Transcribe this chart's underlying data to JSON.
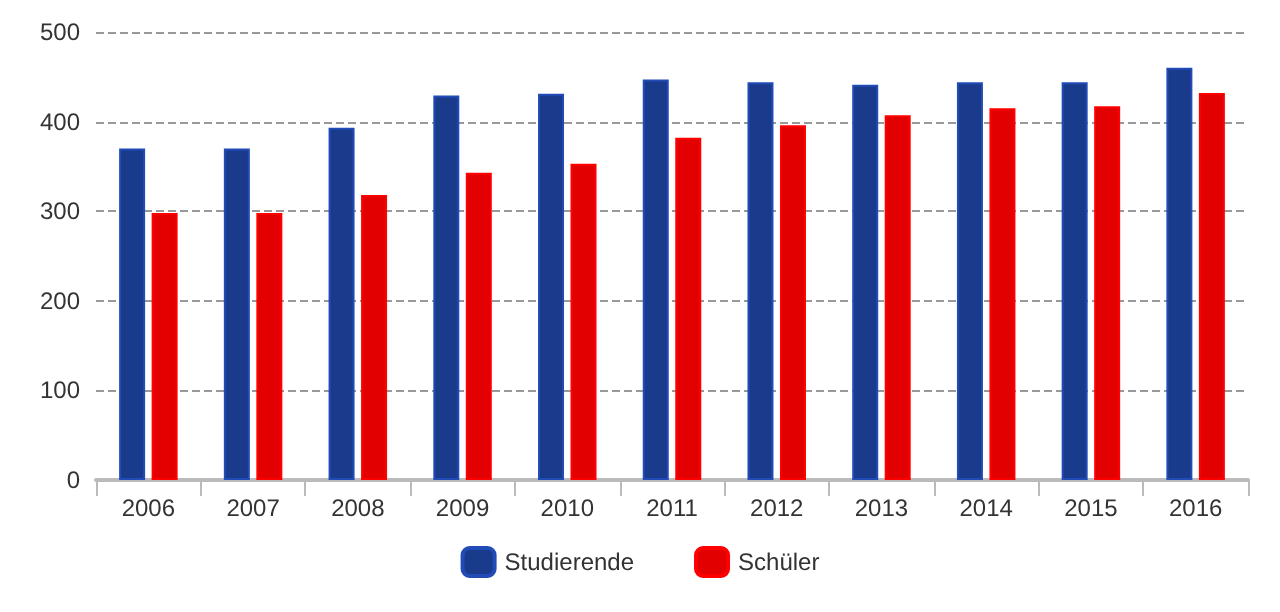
{
  "chart_data": {
    "type": "bar",
    "categories": [
      "2006",
      "2007",
      "2008",
      "2009",
      "2010",
      "2011",
      "2012",
      "2013",
      "2014",
      "2015",
      "2016"
    ],
    "series": [
      {
        "name": "Studierende",
        "color": "#1a3a8c",
        "values": [
          370,
          370,
          393,
          429,
          431,
          447,
          444,
          441,
          444,
          444,
          460
        ]
      },
      {
        "name": "Schüler",
        "color": "#e30000",
        "values": [
          298,
          298,
          318,
          343,
          353,
          382,
          396,
          407,
          415,
          417,
          432
        ]
      }
    ],
    "ylim": [
      0,
      500
    ],
    "yticks": [
      0,
      100,
      200,
      300,
      400,
      500
    ],
    "grid": "y",
    "legend": "bottom"
  }
}
